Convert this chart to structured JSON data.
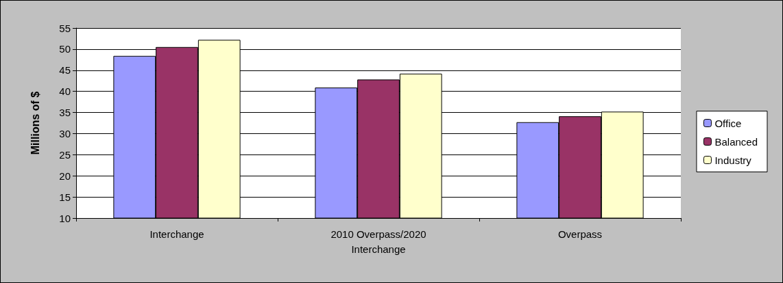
{
  "chart_data": {
    "type": "bar",
    "ylabel": "Millions of $",
    "categories": [
      "Interchange",
      "2010 Overpass/2020\nInterchange",
      "Overpass"
    ],
    "series": [
      {
        "name": "Office",
        "color": "#9999ff",
        "values": [
          48.4,
          40.9,
          32.7
        ]
      },
      {
        "name": "Balanced",
        "color": "#993366",
        "values": [
          50.5,
          42.8,
          34.1
        ]
      },
      {
        "name": "Industry",
        "color": "#ffffcc",
        "values": [
          52.2,
          44.2,
          35.2
        ]
      }
    ],
    "ylim": [
      10,
      55
    ],
    "yticks": [
      10,
      15,
      20,
      25,
      30,
      35,
      40,
      45,
      50,
      55
    ],
    "grid": "y",
    "legend": "right"
  }
}
